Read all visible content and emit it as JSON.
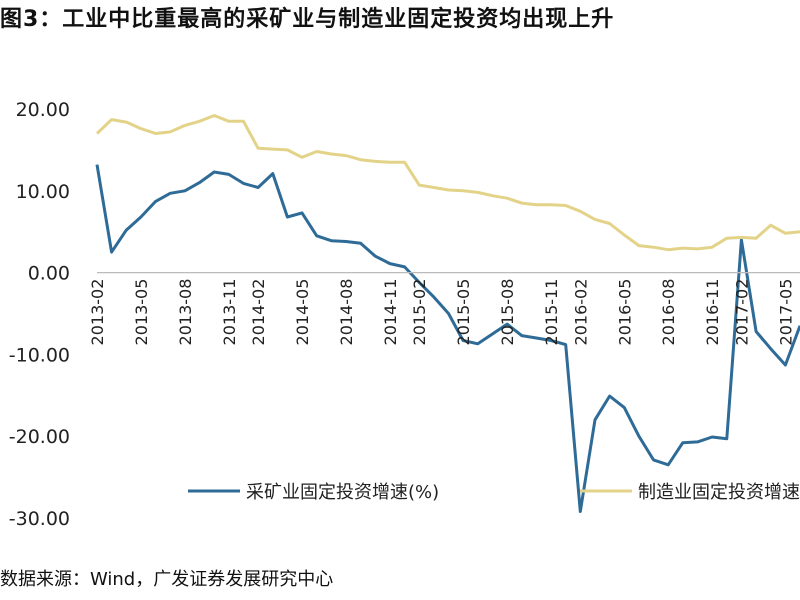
{
  "title": "图3：工业中比重最高的采矿业与制造业固定投资均出现上升",
  "source": "数据来源：Wind，广发证券发展研究中心",
  "colors": {
    "mining": "#2e6b96",
    "manufacturing": "#e3d389",
    "axis": "#bbbbbb"
  },
  "chart_data": {
    "type": "line",
    "x": [
      "2013-02",
      "2013-03",
      "2013-04",
      "2013-05",
      "2013-06",
      "2013-07",
      "2013-08",
      "2013-09",
      "2013-10",
      "2013-11",
      "2013-12",
      "2014-02",
      "2014-03",
      "2014-04",
      "2014-05",
      "2014-06",
      "2014-07",
      "2014-08",
      "2014-09",
      "2014-10",
      "2014-11",
      "2014-12",
      "2015-02",
      "2015-03",
      "2015-04",
      "2015-05",
      "2015-06",
      "2015-07",
      "2015-08",
      "2015-09",
      "2015-10",
      "2015-11",
      "2015-12",
      "2016-02",
      "2016-03",
      "2016-04",
      "2016-05",
      "2016-06",
      "2016-07",
      "2016-08",
      "2016-09",
      "2016-10",
      "2016-11",
      "2016-12",
      "2017-02",
      "2017-03",
      "2017-04",
      "2017-05",
      "2017-06"
    ],
    "x_tick_labels": [
      "2013-02",
      "2013-05",
      "2013-08",
      "2013-11",
      "2014-02",
      "2014-05",
      "2014-08",
      "2014-11",
      "2015-02",
      "2015-05",
      "2015-08",
      "2015-11",
      "2016-02",
      "2016-05",
      "2016-08",
      "2016-11",
      "2017-02",
      "2017-05"
    ],
    "y_tick_labels": [
      "20.00",
      "10.00",
      "0.00",
      "-10.00",
      "-20.00",
      "-30.00"
    ],
    "ylim": [
      -30,
      20
    ],
    "series": [
      {
        "name": "采矿业固定投资增速(%)",
        "color": "#2e6b96",
        "values": [
          13.2,
          2.5,
          5.2,
          6.8,
          8.7,
          9.7,
          10.0,
          11.0,
          12.3,
          12.0,
          10.9,
          10.4,
          12.1,
          6.8,
          7.3,
          4.5,
          3.9,
          3.8,
          3.6,
          2.0,
          1.1,
          0.7,
          -1.2,
          -3.0,
          -5.0,
          -8.3,
          -8.7,
          -7.5,
          -6.3,
          -7.7,
          -8.0,
          -8.3,
          -8.8,
          -29.2,
          -18.0,
          -15.1,
          -16.5,
          -20.0,
          -22.9,
          -23.5,
          -20.8,
          -20.7,
          -20.1,
          -20.3,
          4.0,
          -7.2,
          -9.3,
          -11.3,
          -6.5
        ]
      },
      {
        "name": "制造业固定投资增速(%)",
        "color": "#e3d389",
        "values": [
          17.0,
          18.7,
          18.4,
          17.6,
          17.0,
          17.2,
          18.0,
          18.5,
          19.2,
          18.5,
          18.5,
          15.2,
          15.1,
          15.0,
          14.1,
          14.8,
          14.5,
          14.3,
          13.8,
          13.6,
          13.5,
          13.5,
          10.7,
          10.4,
          10.1,
          10.0,
          9.8,
          9.4,
          9.1,
          8.5,
          8.3,
          8.3,
          8.2,
          7.5,
          6.5,
          6.0,
          4.6,
          3.3,
          3.1,
          2.8,
          3.0,
          2.9,
          3.1,
          4.2,
          4.3,
          4.2,
          5.8,
          4.8,
          5.0
        ]
      }
    ],
    "legend": [
      "采矿业固定投资增速(%)",
      "制造业固定投资增速"
    ],
    "legend_placement": "bottom",
    "grid": false
  }
}
